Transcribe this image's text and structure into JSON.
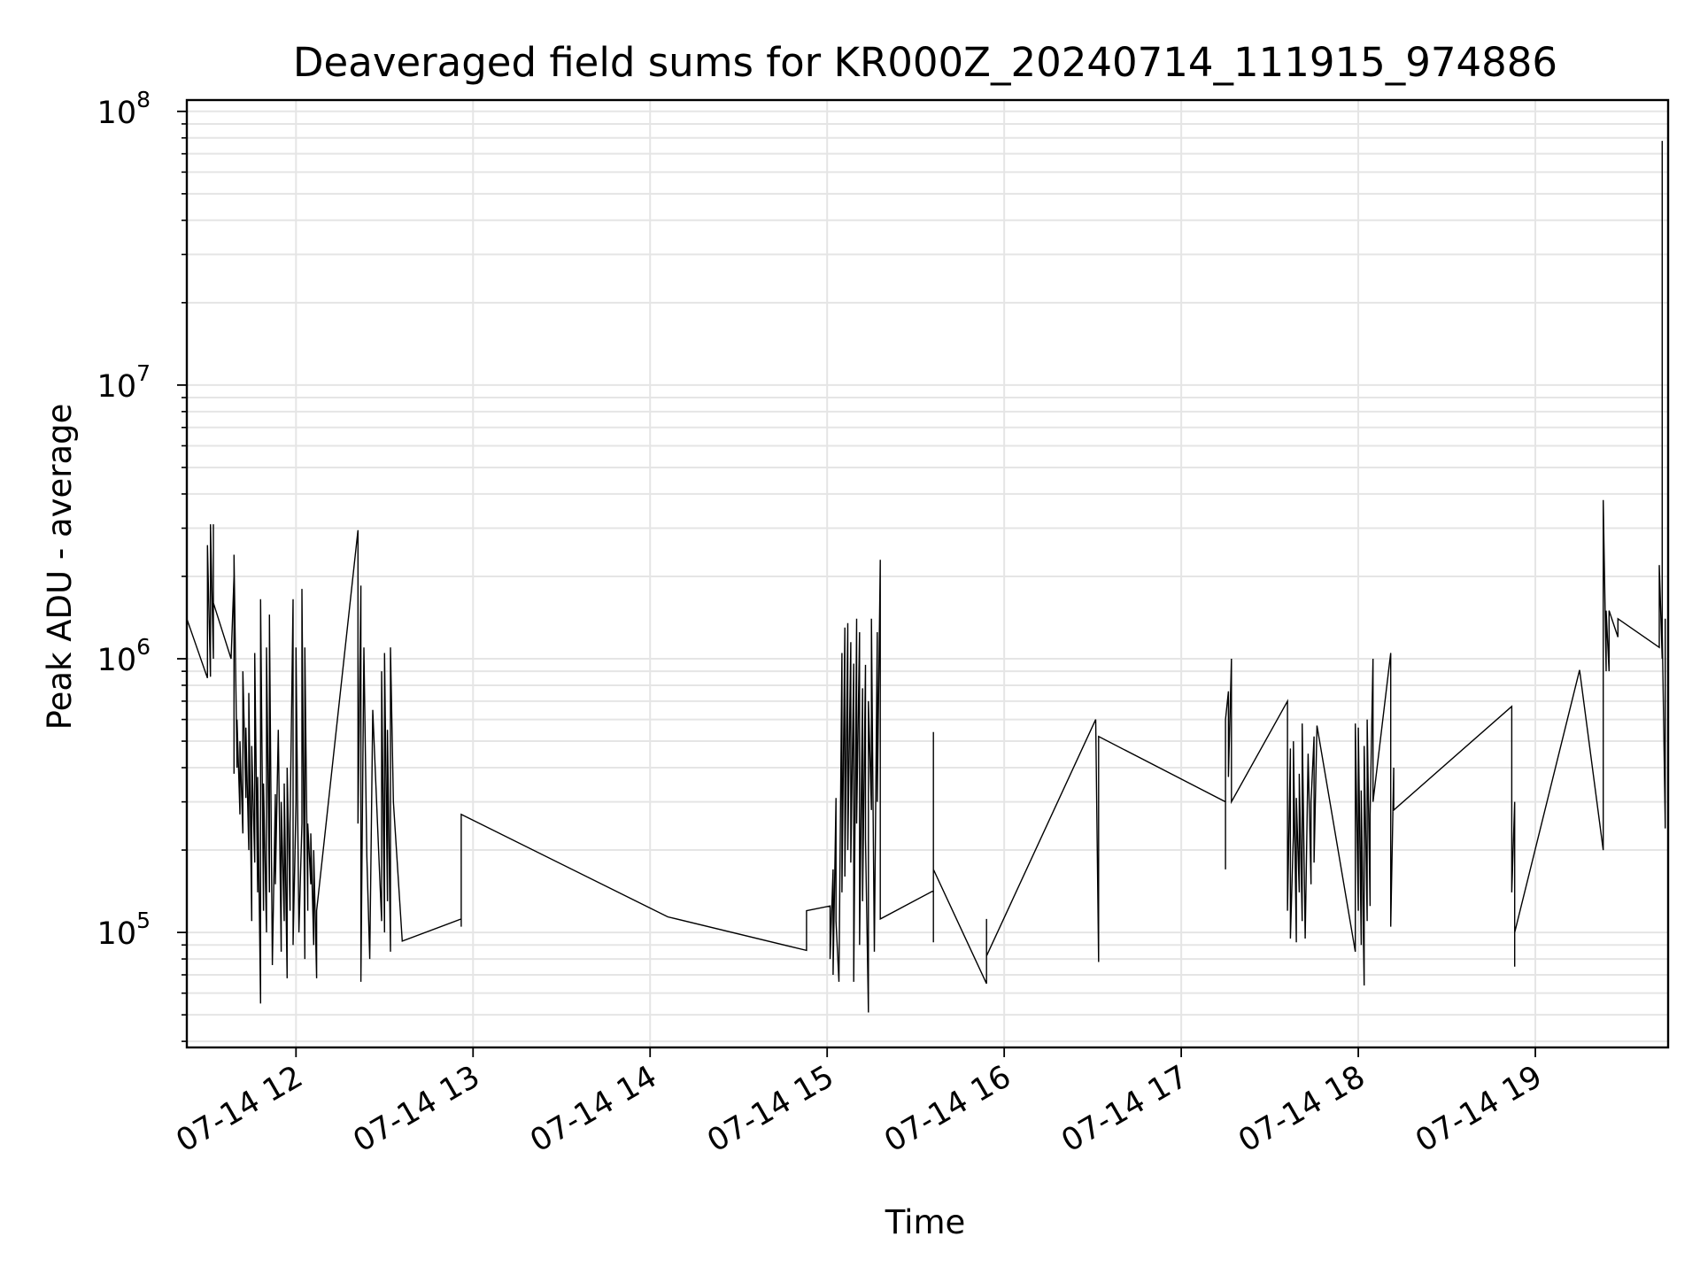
{
  "chart_data": {
    "type": "line",
    "title": "Deaveraged field sums for KR000Z_20240714_111915_974886",
    "xlabel": "Time",
    "ylabel": "Peak ADU - average",
    "y_scale": "log",
    "ylim": [
      38000,
      110000000
    ],
    "xlim": [
      "2024-07-14 11:23",
      "2024-07-14 19:45"
    ],
    "grid": "major and minor",
    "line_color": "#000000",
    "grid_color": "#e5e5e5",
    "x_ticks": [
      {
        "time": "2024-07-14 12:00",
        "label": "07-14 12"
      },
      {
        "time": "2024-07-14 13:00",
        "label": "07-14 13"
      },
      {
        "time": "2024-07-14 14:00",
        "label": "07-14 14"
      },
      {
        "time": "2024-07-14 15:00",
        "label": "07-14 15"
      },
      {
        "time": "2024-07-14 16:00",
        "label": "07-14 16"
      },
      {
        "time": "2024-07-14 17:00",
        "label": "07-14 17"
      },
      {
        "time": "2024-07-14 18:00",
        "label": "07-14 18"
      },
      {
        "time": "2024-07-14 19:00",
        "label": "07-14 19"
      }
    ],
    "y_ticks": [
      {
        "value": 100000,
        "base": "10",
        "exp": "5"
      },
      {
        "value": 1000000,
        "base": "10",
        "exp": "6"
      },
      {
        "value": 10000000,
        "base": "10",
        "exp": "7"
      },
      {
        "value": 100000000,
        "base": "10",
        "exp": "8"
      }
    ],
    "series": [
      {
        "points": [
          [
            "2024-07-14 11:23",
            2800000
          ],
          [
            "2024-07-14 11:23",
            1400000
          ],
          [
            "2024-07-14 11:30",
            850000
          ],
          [
            "2024-07-14 11:30",
            2600000
          ],
          [
            "2024-07-14 11:31",
            860000
          ],
          [
            "2024-07-14 11:31",
            3100000
          ],
          [
            "2024-07-14 11:32",
            1000000
          ],
          [
            "2024-07-14 11:32",
            3100000
          ],
          [
            "2024-07-14 11:32",
            1600000
          ],
          [
            "2024-07-14 11:38",
            1000000
          ],
          [
            "2024-07-14 11:39",
            2000000
          ],
          [
            "2024-07-14 11:39",
            380000
          ],
          [
            "2024-07-14 11:39",
            2400000
          ],
          [
            "2024-07-14 11:40",
            400000
          ],
          [
            "2024-07-14 11:40",
            600000
          ],
          [
            "2024-07-14 11:41",
            270000
          ],
          [
            "2024-07-14 11:41",
            500000
          ],
          [
            "2024-07-14 11:42",
            230000
          ],
          [
            "2024-07-14 11:42",
            900000
          ],
          [
            "2024-07-14 11:43",
            310000
          ],
          [
            "2024-07-14 11:43",
            560000
          ],
          [
            "2024-07-14 11:44",
            200000
          ],
          [
            "2024-07-14 11:44",
            750000
          ],
          [
            "2024-07-14 11:45",
            110000
          ],
          [
            "2024-07-14 11:45",
            480000
          ],
          [
            "2024-07-14 11:46",
            180000
          ],
          [
            "2024-07-14 11:46",
            1050000
          ],
          [
            "2024-07-14 11:47",
            140000
          ],
          [
            "2024-07-14 11:47",
            370000
          ],
          [
            "2024-07-14 11:48",
            55000
          ],
          [
            "2024-07-14 11:48",
            1650000
          ],
          [
            "2024-07-14 11:49",
            120000
          ],
          [
            "2024-07-14 11:49",
            350000
          ],
          [
            "2024-07-14 11:50",
            100000
          ],
          [
            "2024-07-14 11:50",
            1100000
          ],
          [
            "2024-07-14 11:51",
            140000
          ],
          [
            "2024-07-14 11:51",
            1450000
          ],
          [
            "2024-07-14 11:52",
            76000
          ],
          [
            "2024-07-14 11:53",
            320000
          ],
          [
            "2024-07-14 11:53",
            150000
          ],
          [
            "2024-07-14 11:54",
            550000
          ],
          [
            "2024-07-14 11:55",
            85000
          ],
          [
            "2024-07-14 11:55",
            300000
          ],
          [
            "2024-07-14 11:56",
            110000
          ],
          [
            "2024-07-14 11:56",
            350000
          ],
          [
            "2024-07-14 11:57",
            68000
          ],
          [
            "2024-07-14 11:57",
            400000
          ],
          [
            "2024-07-14 11:58",
            120000
          ],
          [
            "2024-07-14 11:58",
            250000
          ],
          [
            "2024-07-14 11:59",
            1650000
          ],
          [
            "2024-07-14 11:59",
            90000
          ],
          [
            "2024-07-14 12:00",
            300000
          ],
          [
            "2024-07-14 12:00",
            1100000
          ],
          [
            "2024-07-14 12:01",
            100000
          ],
          [
            "2024-07-14 12:02",
            250000
          ],
          [
            "2024-07-14 12:02",
            1800000
          ],
          [
            "2024-07-14 12:03",
            80000
          ],
          [
            "2024-07-14 12:03",
            1100000
          ],
          [
            "2024-07-14 12:04",
            120000
          ],
          [
            "2024-07-14 12:04",
            250000
          ],
          [
            "2024-07-14 12:05",
            150000
          ],
          [
            "2024-07-14 12:05",
            230000
          ],
          [
            "2024-07-14 12:06",
            90000
          ],
          [
            "2024-07-14 12:06",
            200000
          ],
          [
            "2024-07-14 12:07",
            68000
          ],
          [
            "2024-07-14 12:07",
            120000
          ],
          [
            "2024-07-14 12:21",
            2950000
          ],
          [
            "2024-07-14 12:21",
            250000
          ],
          [
            "2024-07-14 12:22",
            1850000
          ],
          [
            "2024-07-14 12:22",
            66000
          ],
          [
            "2024-07-14 12:23",
            1100000
          ],
          [
            "2024-07-14 12:24",
            190000
          ],
          [
            "2024-07-14 12:25",
            80000
          ],
          [
            "2024-07-14 12:26",
            650000
          ],
          [
            "2024-07-14 12:28",
            200000
          ],
          [
            "2024-07-14 12:29",
            110000
          ],
          [
            "2024-07-14 12:29",
            900000
          ],
          [
            "2024-07-14 12:30",
            100000
          ],
          [
            "2024-07-14 12:30",
            1050000
          ],
          [
            "2024-07-14 12:31",
            130000
          ],
          [
            "2024-07-14 12:31",
            550000
          ],
          [
            "2024-07-14 12:32",
            85000
          ],
          [
            "2024-07-14 12:32",
            1100000
          ],
          [
            "2024-07-14 12:33",
            300000
          ],
          [
            "2024-07-14 12:36",
            93000
          ],
          [
            "2024-07-14 12:56",
            112000
          ],
          [
            "2024-07-14 12:56",
            105000
          ],
          [
            "2024-07-14 12:56",
            270000
          ],
          [
            "2024-07-14 14:06",
            114000
          ],
          [
            "2024-07-14 14:53",
            86000
          ],
          [
            "2024-07-14 14:53",
            120000
          ],
          [
            "2024-07-14 15:01",
            125000
          ],
          [
            "2024-07-14 15:01",
            80000
          ],
          [
            "2024-07-14 15:02",
            170000
          ],
          [
            "2024-07-14 15:02",
            70000
          ],
          [
            "2024-07-14 15:03",
            310000
          ],
          [
            "2024-07-14 15:03",
            110000
          ],
          [
            "2024-07-14 15:04",
            66000
          ],
          [
            "2024-07-14 15:05",
            1050000
          ],
          [
            "2024-07-14 15:05",
            140000
          ],
          [
            "2024-07-14 15:06",
            1300000
          ],
          [
            "2024-07-14 15:06",
            160000
          ],
          [
            "2024-07-14 15:07",
            1350000
          ],
          [
            "2024-07-14 15:07",
            200000
          ],
          [
            "2024-07-14 15:08",
            1150000
          ],
          [
            "2024-07-14 15:08",
            180000
          ],
          [
            "2024-07-14 15:09",
            960000
          ],
          [
            "2024-07-14 15:09",
            66000
          ],
          [
            "2024-07-14 15:10",
            1400000
          ],
          [
            "2024-07-14 15:10",
            250000
          ],
          [
            "2024-07-14 15:11",
            1250000
          ],
          [
            "2024-07-14 15:11",
            90000
          ],
          [
            "2024-07-14 15:12",
            780000
          ],
          [
            "2024-07-14 15:12",
            130000
          ],
          [
            "2024-07-14 15:13",
            950000
          ],
          [
            "2024-07-14 15:13",
            220000
          ],
          [
            "2024-07-14 15:14",
            51000
          ],
          [
            "2024-07-14 15:14",
            700000
          ],
          [
            "2024-07-14 15:15",
            280000
          ],
          [
            "2024-07-14 15:15",
            1400000
          ],
          [
            "2024-07-14 15:16",
            85000
          ],
          [
            "2024-07-14 15:17",
            1250000
          ],
          [
            "2024-07-14 15:17",
            300000
          ],
          [
            "2024-07-14 15:18",
            2300000
          ],
          [
            "2024-07-14 15:18",
            112000
          ],
          [
            "2024-07-14 15:36",
            142000
          ],
          [
            "2024-07-14 15:36",
            92000
          ],
          [
            "2024-07-14 15:36",
            540000
          ],
          [
            "2024-07-14 15:36",
            170000
          ],
          [
            "2024-07-14 15:54",
            65000
          ],
          [
            "2024-07-14 15:54",
            112000
          ],
          [
            "2024-07-14 15:54",
            82000
          ],
          [
            "2024-07-14 16:31",
            600000
          ],
          [
            "2024-07-14 16:32",
            78000
          ],
          [
            "2024-07-14 16:32",
            360000
          ],
          [
            "2024-07-14 16:32",
            520000
          ],
          [
            "2024-07-14 17:15",
            300000
          ],
          [
            "2024-07-14 17:15",
            170000
          ],
          [
            "2024-07-14 17:15",
            600000
          ],
          [
            "2024-07-14 17:16",
            760000
          ],
          [
            "2024-07-14 17:16",
            370000
          ],
          [
            "2024-07-14 17:17",
            1000000
          ],
          [
            "2024-07-14 17:17",
            300000
          ],
          [
            "2024-07-14 17:36",
            700000
          ],
          [
            "2024-07-14 17:36",
            120000
          ],
          [
            "2024-07-14 17:37",
            470000
          ],
          [
            "2024-07-14 17:37",
            95000
          ],
          [
            "2024-07-14 17:38",
            230000
          ],
          [
            "2024-07-14 17:38",
            500000
          ],
          [
            "2024-07-14 17:39",
            92000
          ],
          [
            "2024-07-14 17:39",
            310000
          ],
          [
            "2024-07-14 17:40",
            140000
          ],
          [
            "2024-07-14 17:40",
            380000
          ],
          [
            "2024-07-14 17:41",
            110000
          ],
          [
            "2024-07-14 17:41",
            580000
          ],
          [
            "2024-07-14 17:42",
            95000
          ],
          [
            "2024-07-14 17:43",
            450000
          ],
          [
            "2024-07-14 17:44",
            150000
          ],
          [
            "2024-07-14 17:44",
            300000
          ],
          [
            "2024-07-14 17:45",
            520000
          ],
          [
            "2024-07-14 17:45",
            180000
          ],
          [
            "2024-07-14 17:46",
            570000
          ],
          [
            "2024-07-14 17:59",
            85000
          ],
          [
            "2024-07-14 17:59",
            580000
          ],
          [
            "2024-07-14 18:00",
            120000
          ],
          [
            "2024-07-14 18:00",
            560000
          ],
          [
            "2024-07-14 18:01",
            90000
          ],
          [
            "2024-07-14 18:01",
            330000
          ],
          [
            "2024-07-14 18:02",
            64000
          ],
          [
            "2024-07-14 18:02",
            480000
          ],
          [
            "2024-07-14 18:03",
            110000
          ],
          [
            "2024-07-14 18:03",
            600000
          ],
          [
            "2024-07-14 18:04",
            125000
          ],
          [
            "2024-07-14 18:04",
            270000
          ],
          [
            "2024-07-14 18:05",
            1000000
          ],
          [
            "2024-07-14 18:05",
            300000
          ],
          [
            "2024-07-14 18:11",
            1050000
          ],
          [
            "2024-07-14 18:11",
            105000
          ],
          [
            "2024-07-14 18:12",
            400000
          ],
          [
            "2024-07-14 18:12",
            280000
          ],
          [
            "2024-07-14 18:52",
            670000
          ],
          [
            "2024-07-14 18:52",
            140000
          ],
          [
            "2024-07-14 18:53",
            300000
          ],
          [
            "2024-07-14 18:53",
            75000
          ],
          [
            "2024-07-14 18:53",
            100000
          ],
          [
            "2024-07-14 19:15",
            910000
          ],
          [
            "2024-07-14 19:23",
            200000
          ],
          [
            "2024-07-14 19:23",
            3800000
          ],
          [
            "2024-07-14 19:24",
            900000
          ],
          [
            "2024-07-14 19:24",
            1500000
          ],
          [
            "2024-07-14 19:25",
            900000
          ],
          [
            "2024-07-14 19:25",
            1500000
          ],
          [
            "2024-07-14 19:28",
            1200000
          ],
          [
            "2024-07-14 19:28",
            1400000
          ],
          [
            "2024-07-14 19:42",
            1100000
          ],
          [
            "2024-07-14 19:42",
            2200000
          ],
          [
            "2024-07-14 19:43",
            1000000
          ],
          [
            "2024-07-14 19:43",
            78000000
          ],
          [
            "2024-07-14 19:43",
            1300000
          ],
          [
            "2024-07-14 19:44",
            250000
          ],
          [
            "2024-07-14 19:44",
            1400000
          ],
          [
            "2024-07-14 19:44",
            240000
          ]
        ]
      }
    ]
  }
}
